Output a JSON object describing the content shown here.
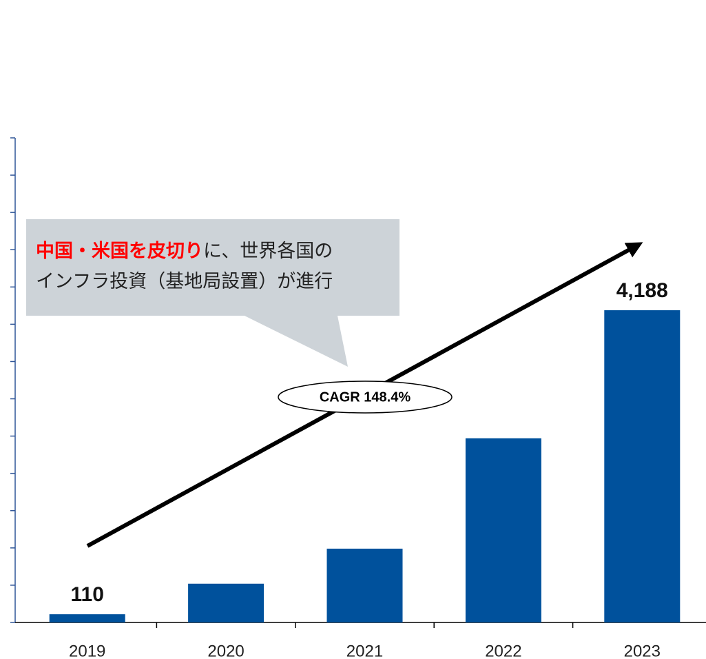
{
  "chart_data": {
    "type": "bar",
    "categories": [
      "2019",
      "2020",
      "2021",
      "2022",
      "2023"
    ],
    "values": [
      110,
      520,
      990,
      2470,
      4188
    ],
    "value_labels": [
      "110",
      null,
      null,
      null,
      "4,188"
    ],
    "color": "#00519c",
    "ylim": [
      0,
      6500
    ],
    "yticks": [
      0,
      500,
      1000,
      1500,
      2000,
      2500,
      3000,
      3500,
      4000,
      4500,
      5000,
      5500,
      6000,
      6500
    ],
    "annotation": {
      "highlight": "中国・米国を皮切り",
      "lines": [
        "に、世界各国の",
        "インフラ投資（基地局設置）が進行"
      ]
    },
    "cagr": "CAGR 148.4%"
  }
}
